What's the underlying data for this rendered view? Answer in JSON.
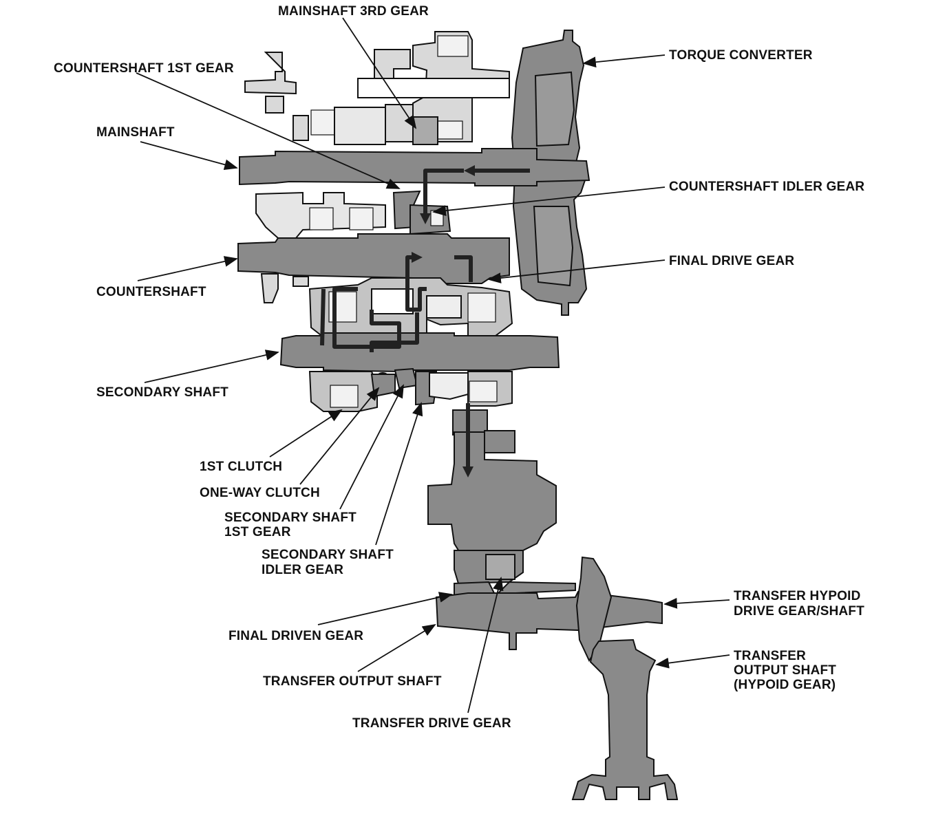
{
  "labels": {
    "mainshaft_3rd_gear": "MAINSHAFT 3RD GEAR",
    "countershaft_1st_gear": "COUNTERSHAFT 1ST GEAR",
    "mainshaft": "MAINSHAFT",
    "countershaft": "COUNTERSHAFT",
    "secondary_shaft": "SECONDARY SHAFT",
    "first_clutch": "1ST CLUTCH",
    "one_way_clutch": "ONE-WAY CLUTCH",
    "secondary_shaft_1st_gear_l1": "SECONDARY SHAFT",
    "secondary_shaft_1st_gear_l2": "1ST GEAR",
    "secondary_shaft_idler_gear_l1": "SECONDARY SHAFT",
    "secondary_shaft_idler_gear_l2": "IDLER GEAR",
    "final_driven_gear": "FINAL DRIVEN GEAR",
    "transfer_output_shaft": "TRANSFER OUTPUT SHAFT",
    "transfer_drive_gear": "TRANSFER DRIVE GEAR",
    "torque_converter": "TORQUE CONVERTER",
    "countershaft_idler_gear": "COUNTERSHAFT IDLER GEAR",
    "final_drive_gear": "FINAL DRIVE GEAR",
    "transfer_hypoid_l1": "TRANSFER HYPOID",
    "transfer_hypoid_l2": "DRIVE GEAR/SHAFT",
    "transfer_output_hypoid_l1": "TRANSFER",
    "transfer_output_hypoid_l2": "OUTPUT SHAFT",
    "transfer_output_hypoid_l3": "(HYPOID GEAR)"
  },
  "colors": {
    "part_fill": "#8a8a8a",
    "light_fill": "#d9d9d9",
    "power_flow": "#222222"
  }
}
